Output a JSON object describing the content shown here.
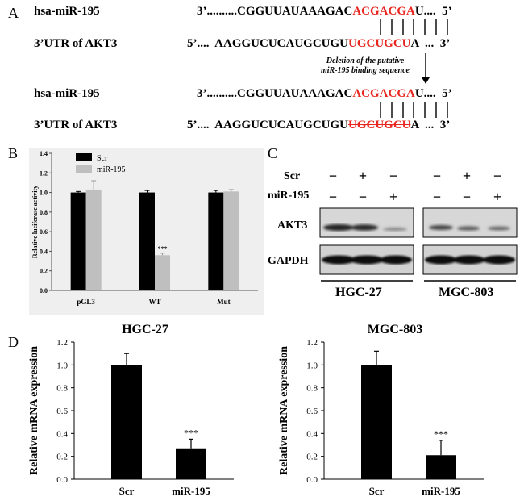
{
  "panels": {
    "A": {
      "letter": "A",
      "upper": {
        "mir_label": "hsa-miR-195",
        "mir_start": "3’..........CGGUUAUAAAGAC",
        "mir_seed": "ACGACGA",
        "mir_end": "U....  5’",
        "utr_label": "3’UTR of AKT3",
        "utr_start": "5’....  AAGGUCUCAUGCUGU",
        "utr_site": "UGCUGCU",
        "utr_end": "A  ...  3’"
      },
      "deletion_note_line1": "Deletion of the putative",
      "deletion_note_line2": "miR-195 binding sequence",
      "lower": {
        "mir_label": "hsa-miR-195",
        "mir_start": "3’..........CGGUUAUAAAGAC",
        "mir_seed": "ACGACGA",
        "mir_end": "U....  5’",
        "utr_label": "3’UTR of AKT3",
        "utr_start": "5’....  AAGGUCUCAUGCUGU",
        "utr_site": "UGCUGCU",
        "utr_end": "A  ...  3’"
      }
    },
    "B": {
      "letter": "B",
      "legend": [
        "Scr",
        "miR-195"
      ],
      "ylabel": "Relative luciferase activity",
      "significance": "***"
    },
    "C": {
      "letter": "C",
      "row_labels": [
        "Scr",
        "miR-195"
      ],
      "signs_scr": [
        "−",
        "+",
        "−",
        "−",
        "+",
        "−"
      ],
      "signs_mir": [
        "−",
        "−",
        "+",
        "−",
        "−",
        "+"
      ],
      "blot_labels": [
        "AKT3",
        "GAPDH"
      ],
      "cell_lines": [
        "HGC-27",
        "MGC-803"
      ]
    },
    "D": {
      "letter": "D",
      "ylabel": "Relative mRNA expression",
      "significance": "***"
    }
  },
  "chart_data": [
    {
      "type": "bar",
      "panel": "B",
      "categories": [
        "pGL3",
        "WT",
        "Mut"
      ],
      "series": [
        {
          "name": "Scr",
          "values": [
            1.0,
            1.0,
            1.0
          ],
          "errors": [
            0.01,
            0.02,
            0.02
          ],
          "color": "#000000"
        },
        {
          "name": "miR-195",
          "values": [
            1.03,
            0.36,
            1.01
          ],
          "errors": [
            0.09,
            0.02,
            0.02
          ],
          "color": "#bfbfbf"
        }
      ],
      "ylabel": "Relative luciferase activity",
      "ylim": [
        0,
        1.4
      ],
      "yticks": [
        "0.0",
        "0.2",
        "0.4",
        "0.6",
        "0.8",
        "1.0",
        "1.2",
        "1.4"
      ],
      "legend": "top-left",
      "annotations": [
        {
          "category": "WT",
          "series": "miR-195",
          "text": "***"
        }
      ]
    },
    {
      "type": "bar",
      "panel": "D",
      "title": "HGC-27",
      "categories": [
        "Scr",
        "miR-195"
      ],
      "values": [
        1.0,
        0.27
      ],
      "errors": [
        0.1,
        0.08
      ],
      "ylabel": "Relative mRNA expression",
      "ylim": [
        0,
        1.2
      ],
      "yticks": [
        "0.0",
        "0.2",
        "0.4",
        "0.6",
        "0.8",
        "1.0",
        "1.2"
      ],
      "annotations": [
        {
          "category": "miR-195",
          "text": "***"
        }
      ]
    },
    {
      "type": "bar",
      "panel": "D",
      "title": "MGC-803",
      "categories": [
        "Scr",
        "miR-195"
      ],
      "values": [
        1.0,
        0.21
      ],
      "errors": [
        0.12,
        0.13
      ],
      "ylabel": "Relative mRNA expression",
      "ylim": [
        0,
        1.2
      ],
      "yticks": [
        "0.0",
        "0.2",
        "0.4",
        "0.6",
        "0.8",
        "1.0",
        "1.2"
      ],
      "annotations": [
        {
          "category": "miR-195",
          "text": "***"
        }
      ]
    }
  ]
}
